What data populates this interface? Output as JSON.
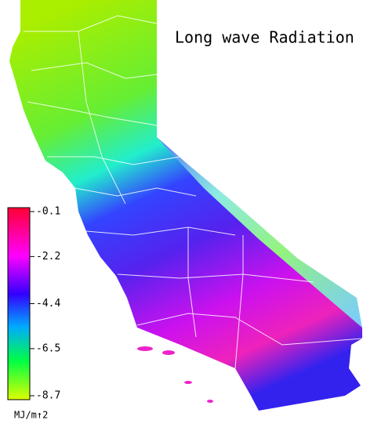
{
  "title": "Long wave Radiation",
  "colorbar": {
    "range": [
      -8.7,
      -0.1
    ],
    "ticks": [
      -0.1,
      -2.2,
      -4.4,
      -6.5,
      -8.7
    ],
    "unit": "MJ/m↑2"
  }
}
